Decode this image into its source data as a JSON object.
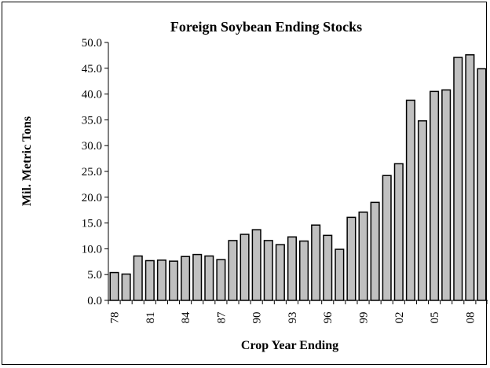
{
  "chart_data": {
    "type": "bar",
    "title": "Foreign Soybean Ending Stocks",
    "xlabel": "Crop Year Ending",
    "ylabel": "Mil. Metric Tons",
    "ylim": [
      0,
      50
    ],
    "yticks": [
      "0.0",
      "5.0",
      "10.0",
      "15.0",
      "20.0",
      "25.0",
      "30.0",
      "35.0",
      "40.0",
      "45.0",
      "50.0"
    ],
    "x_tick_labels": [
      {
        "index": 0,
        "label": "78"
      },
      {
        "index": 3,
        "label": "81"
      },
      {
        "index": 6,
        "label": "84"
      },
      {
        "index": 9,
        "label": "87"
      },
      {
        "index": 12,
        "label": "90"
      },
      {
        "index": 15,
        "label": "93"
      },
      {
        "index": 18,
        "label": "96"
      },
      {
        "index": 21,
        "label": "99"
      },
      {
        "index": 24,
        "label": "02"
      },
      {
        "index": 27,
        "label": "05"
      },
      {
        "index": 30,
        "label": "08"
      }
    ],
    "categories": [
      "78",
      "79",
      "80",
      "81",
      "82",
      "83",
      "84",
      "85",
      "86",
      "87",
      "88",
      "89",
      "90",
      "91",
      "92",
      "93",
      "94",
      "95",
      "96",
      "97",
      "98",
      "99",
      "00",
      "01",
      "02",
      "03",
      "04",
      "05",
      "06",
      "07",
      "08",
      "09"
    ],
    "values": [
      5.4,
      5.1,
      8.6,
      7.7,
      7.8,
      7.6,
      8.5,
      8.9,
      8.6,
      7.9,
      11.6,
      12.8,
      13.7,
      11.6,
      10.8,
      12.3,
      11.5,
      14.6,
      12.6,
      9.9,
      16.1,
      17.1,
      19.0,
      24.2,
      26.5,
      38.8,
      34.8,
      40.5,
      40.8,
      47.1,
      47.6,
      44.9
    ],
    "bar_color": "#c0c0c0",
    "grid": false,
    "legend": false
  }
}
